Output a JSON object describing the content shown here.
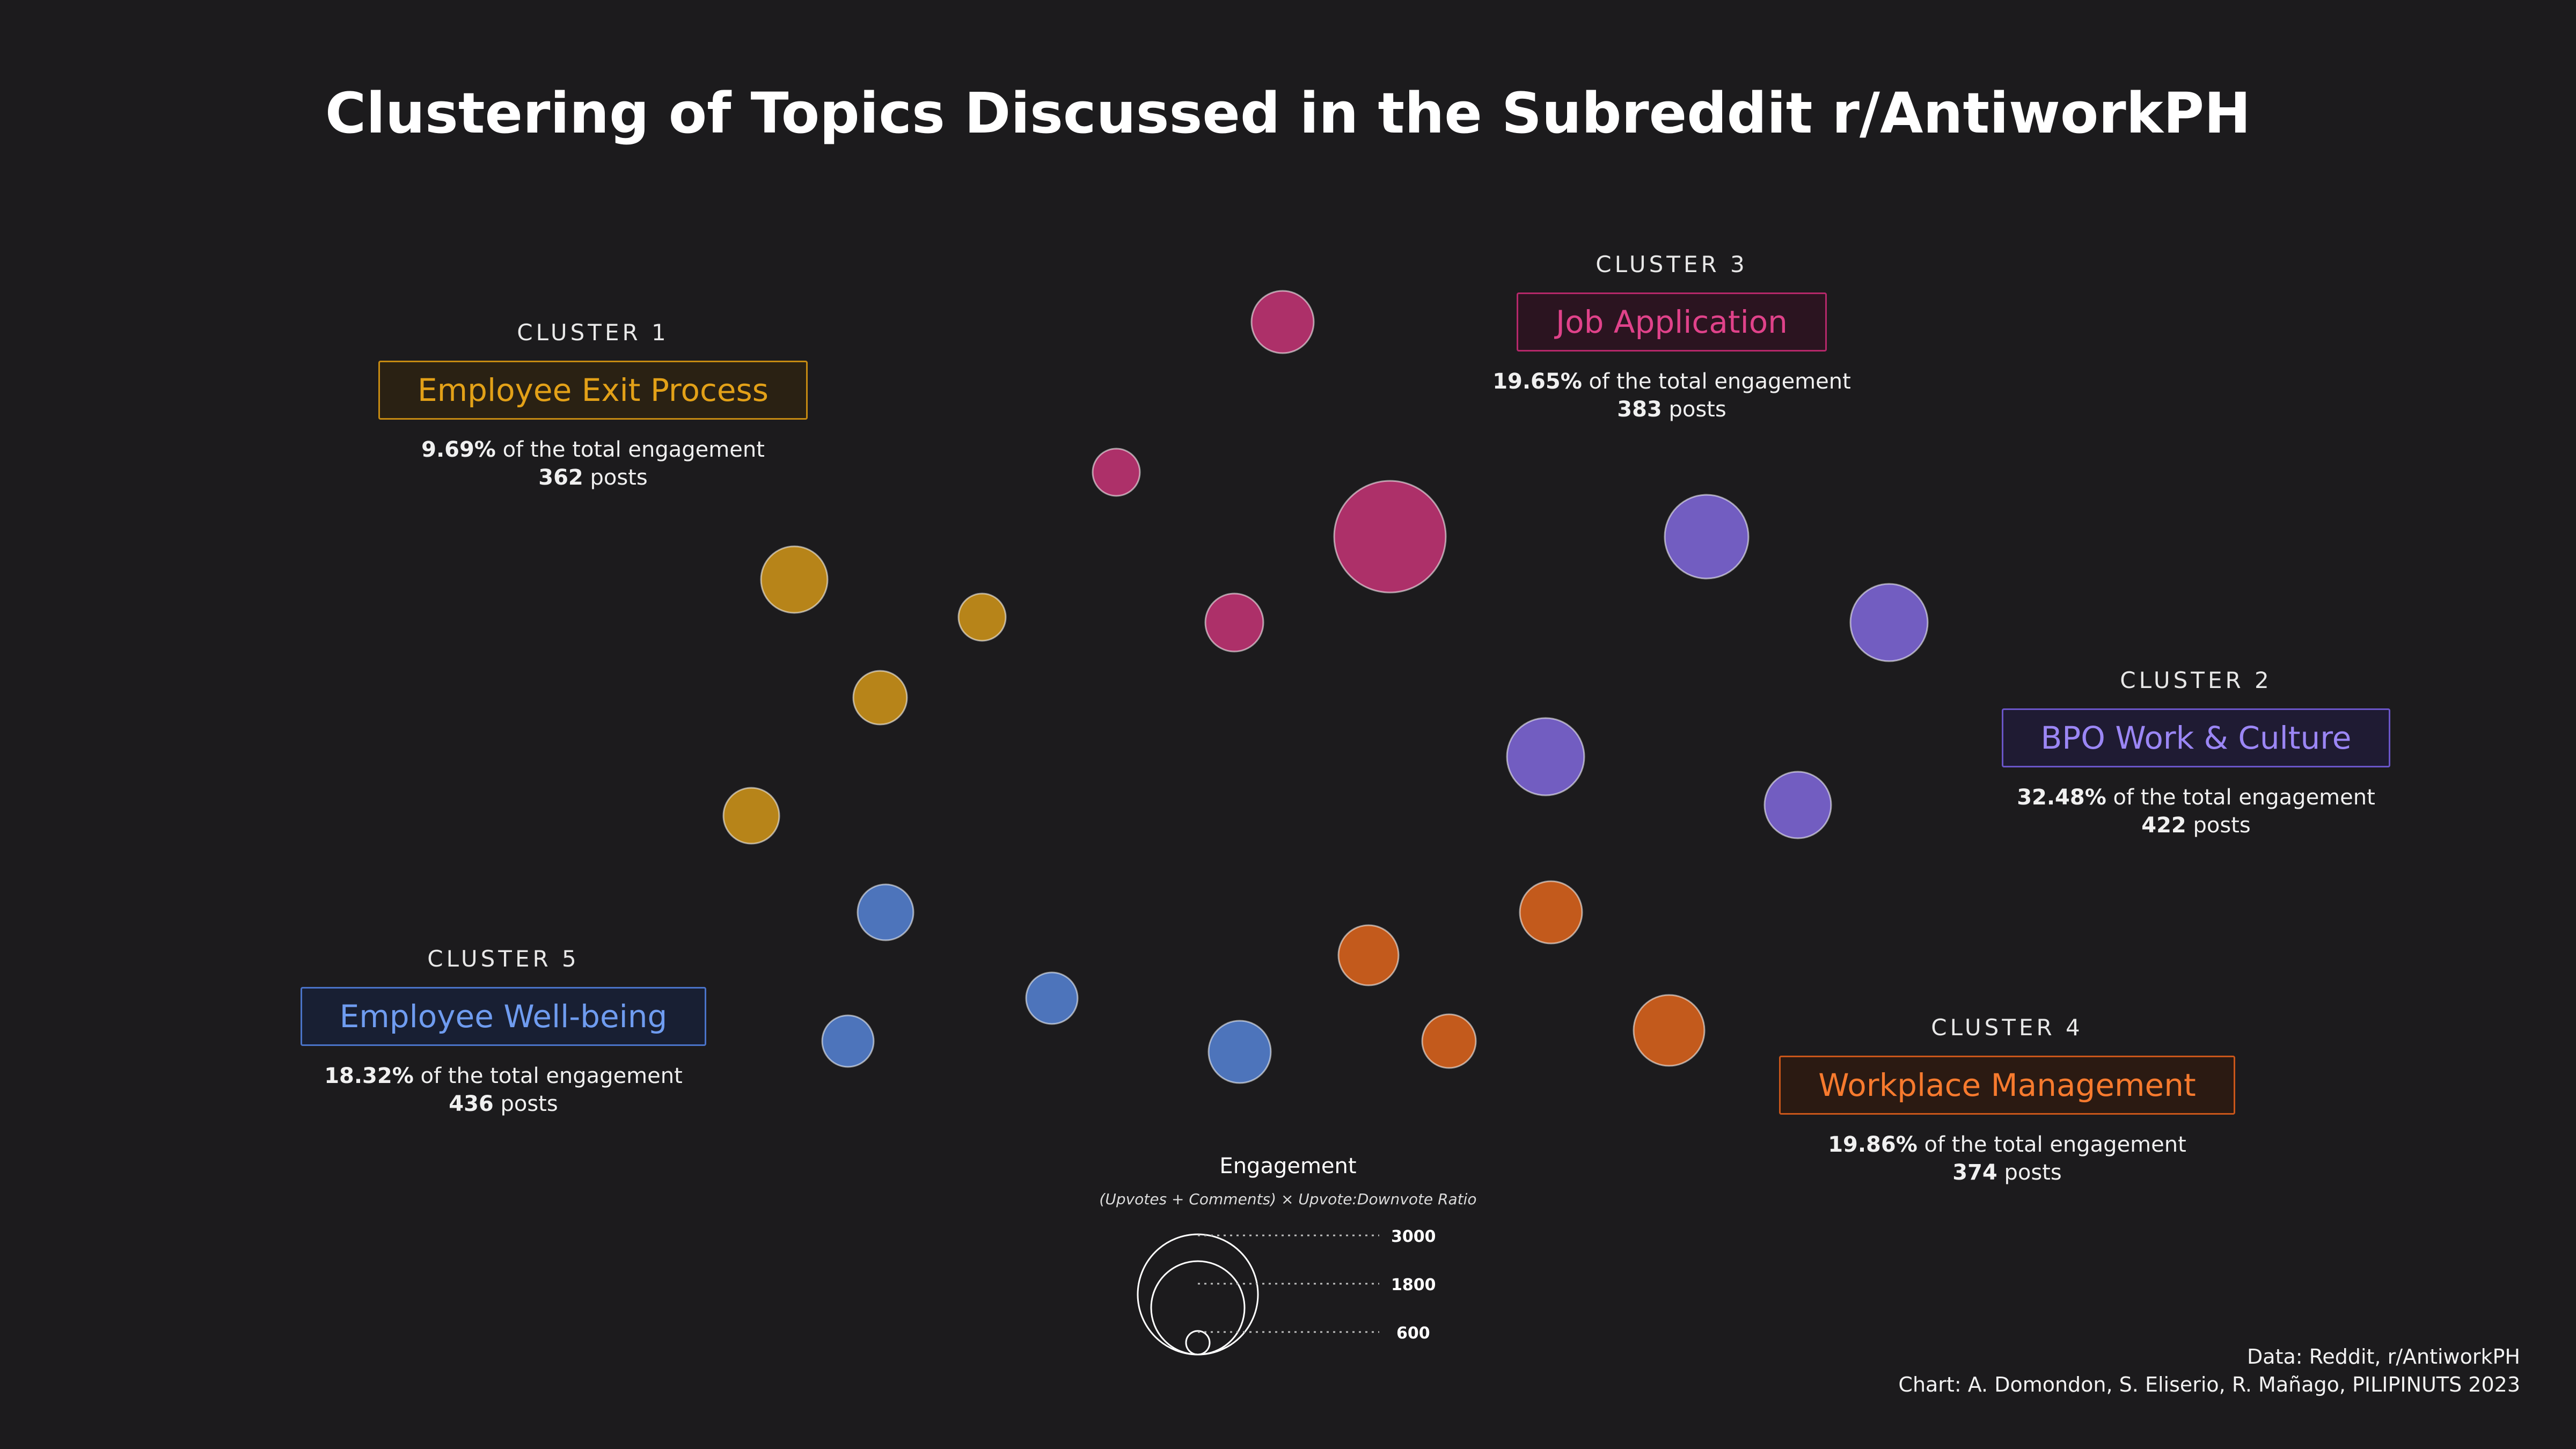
{
  "title": "Clustering of Topics Discussed in the Subreddit r/AntiworkPH",
  "clusters": [
    {
      "kicker": "CLUSTER 1",
      "name": "Employee Exit Process",
      "share": "9.69%",
      "share_suffix": " of the total engagement",
      "posts": "362",
      "posts_suffix": " posts",
      "color": "#e3a118"
    },
    {
      "kicker": "CLUSTER 2",
      "name": "BPO Work & Culture",
      "share": "32.48%",
      "share_suffix": " of the total engagement",
      "posts": "422",
      "posts_suffix": " posts",
      "color": "#8a70f0"
    },
    {
      "kicker": "CLUSTER 3",
      "name": "Job Application",
      "share": "19.65%",
      "share_suffix": " of the total engagement",
      "posts": "383",
      "posts_suffix": " posts",
      "color": "#d6367f"
    },
    {
      "kicker": "CLUSTER 4",
      "name": "Workplace Management",
      "share": "19.86%",
      "share_suffix": " of the total engagement",
      "posts": "374",
      "posts_suffix": " posts",
      "color": "#f26b1c"
    },
    {
      "kicker": "CLUSTER 5",
      "name": "Employee Well-being",
      "share": "18.32%",
      "share_suffix": " of the total engagement",
      "posts": "436",
      "posts_suffix": " posts",
      "color": "#5b8de8"
    }
  ],
  "legend": {
    "title": "Engagement",
    "subtitle": "(Upvotes + Comments) × Upvote:Downvote Ratio",
    "values": [
      "3000",
      "1800",
      "600"
    ]
  },
  "credits": {
    "data": "Data: Reddit, r/AntiworkPH",
    "chart": "Chart: A. Domondon, S. Eliserio, R. Mañago, PILIPINUTS 2023"
  },
  "chart_data": {
    "type": "scatter",
    "title": "Clustering of Topics Discussed in the Subreddit r/AntiworkPH",
    "size_variable": "Engagement",
    "size_legend": [
      3000,
      1800,
      600
    ],
    "series": [
      {
        "name": "Employee Exit Process",
        "engagement_share_pct": 9.69,
        "posts": 362
      },
      {
        "name": "BPO Work & Culture",
        "engagement_share_pct": 32.48,
        "posts": 422
      },
      {
        "name": "Job Application",
        "engagement_share_pct": 19.65,
        "posts": 383
      },
      {
        "name": "Workplace Management",
        "engagement_share_pct": 19.86,
        "posts": 374
      },
      {
        "name": "Employee Well-being",
        "engagement_share_pct": 18.32,
        "posts": 436
      }
    ]
  }
}
